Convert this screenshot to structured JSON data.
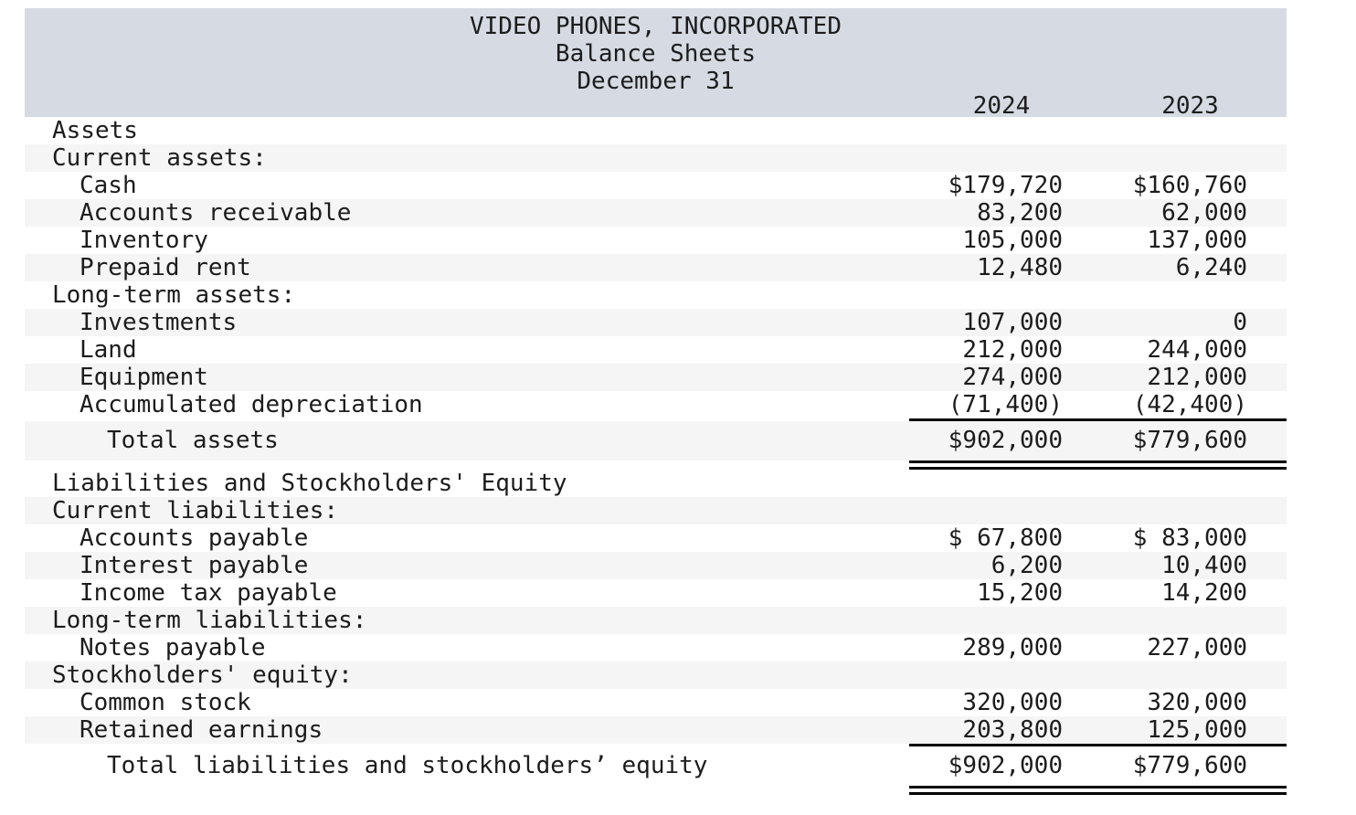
{
  "header": {
    "company": "VIDEO PHONES, INCORPORATED",
    "report_title": "Balance Sheets",
    "date_line": "December 31",
    "columns": [
      "2024",
      "2023"
    ]
  },
  "rows": [
    {
      "label": "Assets",
      "y2024": "",
      "y2023": ""
    },
    {
      "label": "Current assets:",
      "y2024": "",
      "y2023": ""
    },
    {
      "label": "Cash",
      "y2024": "$179,720",
      "y2023": "$160,760"
    },
    {
      "label": "Accounts receivable",
      "y2024": "83,200",
      "y2023": "62,000"
    },
    {
      "label": "Inventory",
      "y2024": "105,000",
      "y2023": "137,000"
    },
    {
      "label": "Prepaid rent",
      "y2024": "12,480",
      "y2023": "6,240"
    },
    {
      "label": "Long-term assets:",
      "y2024": "",
      "y2023": ""
    },
    {
      "label": "Investments",
      "y2024": "107,000",
      "y2023": "0"
    },
    {
      "label": "Land",
      "y2024": "212,000",
      "y2023": "244,000"
    },
    {
      "label": "Equipment",
      "y2024": "274,000",
      "y2023": "212,000"
    },
    {
      "label": "Accumulated depreciation",
      "y2024": "(71,400)",
      "y2023": "(42,400)"
    },
    {
      "label": "Total assets",
      "y2024": "$902,000",
      "y2023": "$779,600"
    },
    {
      "label": "Liabilities and Stockholders' Equity",
      "y2024": "",
      "y2023": ""
    },
    {
      "label": "Current liabilities:",
      "y2024": "",
      "y2023": ""
    },
    {
      "label": "Accounts payable",
      "y2024": "$ 67,800",
      "y2023": "$ 83,000"
    },
    {
      "label": "Interest payable",
      "y2024": "6,200",
      "y2023": "10,400"
    },
    {
      "label": "Income tax payable",
      "y2024": "15,200",
      "y2023": "14,200"
    },
    {
      "label": "Long-term liabilities:",
      "y2024": "",
      "y2023": ""
    },
    {
      "label": "Notes payable",
      "y2024": "289,000",
      "y2023": "227,000"
    },
    {
      "label": "Stockholders' equity:",
      "y2024": "",
      "y2023": ""
    },
    {
      "label": "Common stock",
      "y2024": "320,000",
      "y2023": "320,000"
    },
    {
      "label": "Retained earnings",
      "y2024": "203,800",
      "y2023": "125,000"
    },
    {
      "label": "Total liabilities and stockholders’ equity",
      "y2024": "$902,000",
      "y2023": "$779,600"
    }
  ],
  "colors": {
    "banner_background": "#d5dae3",
    "stripe_background": "#f5f5f6",
    "text": "#1c1c1c",
    "rule": "#000000"
  }
}
